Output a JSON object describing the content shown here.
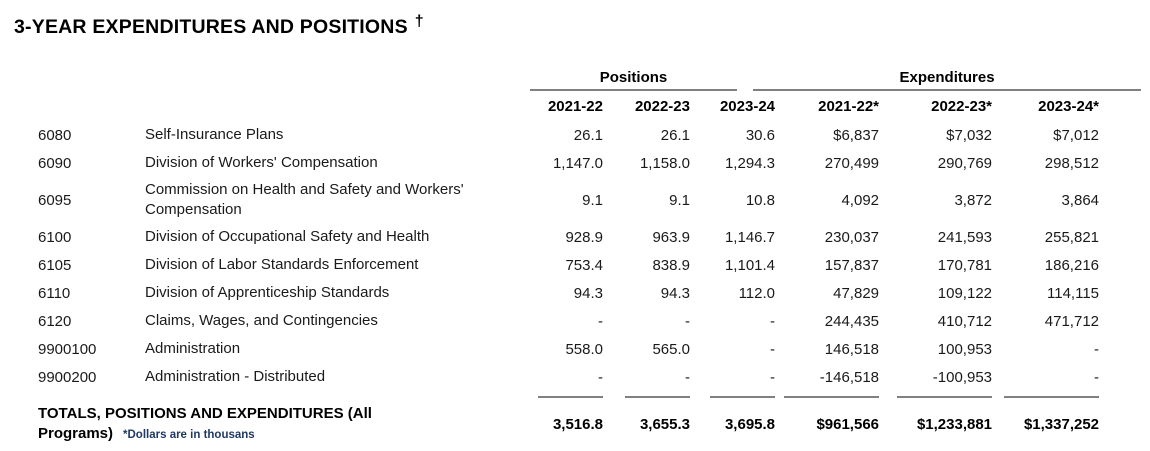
{
  "title": "3-YEAR EXPENDITURES AND POSITIONS",
  "dagger": "†",
  "colors": {
    "note_blue": "#1F3864",
    "rule_gray": "#808080",
    "text": "#000000"
  },
  "table": {
    "group_headers": {
      "positions": "Positions",
      "expenditures": "Expenditures"
    },
    "year_headers": {
      "positions": [
        "2021-22",
        "2022-23",
        "2023-24"
      ],
      "expenditures": [
        "2021-22*",
        "2022-23*",
        "2023-24*"
      ]
    },
    "rows": [
      {
        "code": "6080",
        "name": "Self-Insurance Plans",
        "positions": [
          "26.1",
          "26.1",
          "30.6"
        ],
        "expenditures": [
          "$6,837",
          "$7,032",
          "$7,012"
        ]
      },
      {
        "code": "6090",
        "name": "Division of Workers' Compensation",
        "positions": [
          "1,147.0",
          "1,158.0",
          "1,294.3"
        ],
        "expenditures": [
          "270,499",
          "290,769",
          "298,512"
        ]
      },
      {
        "code": "6095",
        "name": "Commission on Health and Safety and Workers' Compensation",
        "positions": [
          "9.1",
          "9.1",
          "10.8"
        ],
        "expenditures": [
          "4,092",
          "3,872",
          "3,864"
        ]
      },
      {
        "code": "6100",
        "name": "Division of Occupational Safety and Health",
        "positions": [
          "928.9",
          "963.9",
          "1,146.7"
        ],
        "expenditures": [
          "230,037",
          "241,593",
          "255,821"
        ]
      },
      {
        "code": "6105",
        "name": "Division of Labor Standards Enforcement",
        "positions": [
          "753.4",
          "838.9",
          "1,101.4"
        ],
        "expenditures": [
          "157,837",
          "170,781",
          "186,216"
        ]
      },
      {
        "code": "6110",
        "name": "Division of Apprenticeship Standards",
        "positions": [
          "94.3",
          "94.3",
          "112.0"
        ],
        "expenditures": [
          "47,829",
          "109,122",
          "114,115"
        ]
      },
      {
        "code": "6120",
        "name": "Claims, Wages, and Contingencies",
        "positions": [
          "-",
          "-",
          "-"
        ],
        "expenditures": [
          "244,435",
          "410,712",
          "471,712"
        ]
      },
      {
        "code": "9900100",
        "name": "Administration",
        "positions": [
          "558.0",
          "565.0",
          "-"
        ],
        "expenditures": [
          "146,518",
          "100,953",
          "-"
        ]
      },
      {
        "code": "9900200",
        "name": "Administration - Distributed",
        "positions": [
          "-",
          "-",
          "-"
        ],
        "expenditures": [
          "-146,518",
          "-100,953",
          "-"
        ]
      }
    ],
    "totals": {
      "label": "TOTALS, POSITIONS AND EXPENDITURES (All Programs)",
      "note": "*Dollars are in thousans",
      "positions": [
        "3,516.8",
        "3,655.3",
        "3,695.8"
      ],
      "expenditures": [
        "$961,566",
        "$1,233,881",
        "$1,337,252"
      ]
    }
  }
}
